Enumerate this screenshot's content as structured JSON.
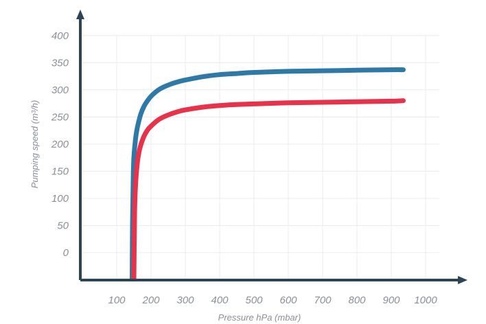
{
  "chart_data": {
    "type": "line",
    "xlabel": "Pressure hPa (mbar)",
    "ylabel": "Pumping speed (m³/h)",
    "x_ticks": [
      "100",
      "200",
      "300",
      "400",
      "500",
      "600",
      "700",
      "800",
      "900",
      "1000"
    ],
    "y_ticks": [
      "0",
      "50",
      "100",
      "150",
      "200",
      "250",
      "300",
      "350",
      "400"
    ],
    "xlim": [
      100,
      1000
    ],
    "ylim": [
      0,
      400
    ],
    "grid": true,
    "legend": "none",
    "series": [
      {
        "color": "#2f79a8",
        "x": [
          145,
          146,
          148,
          150,
          155,
          160,
          170,
          180,
          190,
          200,
          220,
          240,
          260,
          280,
          300,
          350,
          400,
          450,
          500,
          600,
          700,
          800,
          900,
          935
        ],
        "values": [
          -50,
          50,
          130,
          175,
          210,
          230,
          255,
          270,
          280,
          288,
          299,
          306,
          311,
          315,
          318,
          324,
          328,
          330,
          332,
          334,
          335,
          336,
          337,
          337
        ]
      },
      {
        "color": "#e8324a",
        "x": [
          150,
          151,
          152,
          155,
          160,
          165,
          170,
          180,
          190,
          200,
          220,
          240,
          260,
          280,
          300,
          350,
          400,
          450,
          500,
          600,
          700,
          800,
          900,
          935
        ],
        "values": [
          -50,
          10,
          70,
          125,
          165,
          185,
          198,
          215,
          226,
          233,
          244,
          251,
          256,
          260,
          263,
          268,
          271,
          273,
          274,
          276,
          277,
          278,
          279,
          280
        ]
      }
    ]
  }
}
